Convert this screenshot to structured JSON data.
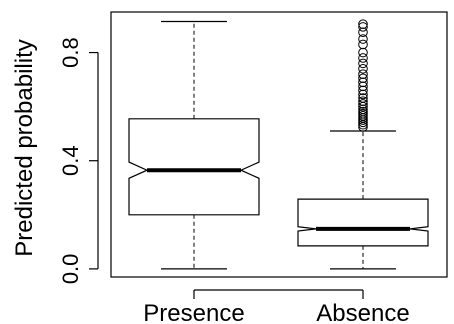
{
  "chart_data": {
    "type": "boxplot",
    "title": "",
    "xlabel": "",
    "ylabel": "Predicted probability",
    "ylim": [
      -0.03,
      0.95
    ],
    "yticks": [
      0.0,
      0.4,
      0.8
    ],
    "ytick_labels": [
      "0.0",
      "0.4",
      "0.8"
    ],
    "notched": true,
    "grid": false,
    "categories": [
      "Presence",
      "Absence"
    ],
    "boxes": [
      {
        "name": "Presence",
        "whisker_low": 0.0,
        "q1": 0.2,
        "median": 0.365,
        "q3": 0.555,
        "whisker_high": 0.915,
        "notch_low": 0.335,
        "notch_high": 0.395,
        "outliers": []
      },
      {
        "name": "Absence",
        "whisker_low": 0.0,
        "q1": 0.085,
        "median": 0.148,
        "q3": 0.258,
        "whisker_high": 0.51,
        "notch_low": 0.14,
        "notch_high": 0.156,
        "outliers": [
          0.525,
          0.533,
          0.542,
          0.55,
          0.558,
          0.566,
          0.574,
          0.582,
          0.59,
          0.6,
          0.61,
          0.62,
          0.632,
          0.645,
          0.66,
          0.675,
          0.69,
          0.705,
          0.72,
          0.74,
          0.76,
          0.78,
          0.8,
          0.83,
          0.85,
          0.875,
          0.895,
          0.905
        ]
      }
    ]
  }
}
